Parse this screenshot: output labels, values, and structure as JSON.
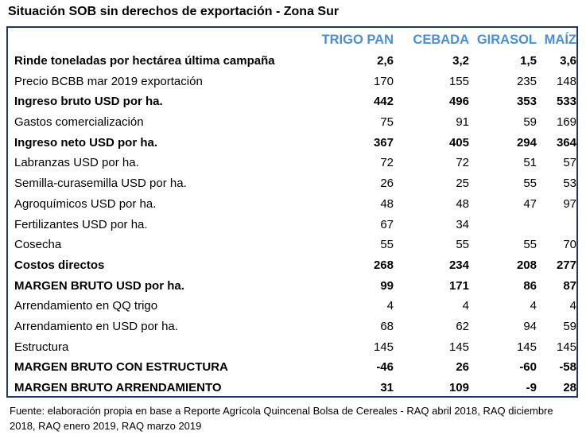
{
  "title": "Situación SOB sin derechos de exportación - Zona Sur",
  "columns": [
    "TRIGO PAN",
    "CEBADA",
    "GIRASOL",
    "MAÍZ"
  ],
  "header_color": "#4a8fd6",
  "border_color": "#1f3864",
  "rows": [
    {
      "label": "Rinde toneladas por hectárea última campaña",
      "bold": true,
      "values": [
        "2,6",
        "3,2",
        "1,5",
        "3,6"
      ]
    },
    {
      "label": "Precio BCBB mar 2019 exportación",
      "bold": false,
      "values": [
        "170",
        "155",
        "235",
        "148"
      ]
    },
    {
      "label": "Ingreso bruto USD por ha.",
      "bold": true,
      "values": [
        "442",
        "496",
        "353",
        "533"
      ]
    },
    {
      "label": "Gastos comercialización",
      "bold": false,
      "values": [
        "75",
        "91",
        "59",
        "169"
      ]
    },
    {
      "label": "Ingreso neto USD por ha.",
      "bold": true,
      "values": [
        "367",
        "405",
        "294",
        "364"
      ]
    },
    {
      "label": "Labranzas USD por ha.",
      "bold": false,
      "values": [
        "72",
        "72",
        "51",
        "57"
      ]
    },
    {
      "label": "Semilla-curasemilla USD por ha.",
      "bold": false,
      "values": [
        "26",
        "25",
        "55",
        "53"
      ]
    },
    {
      "label": "Agroquímicos USD por ha.",
      "bold": false,
      "values": [
        "48",
        "48",
        "47",
        "97"
      ]
    },
    {
      "label": "Fertilizantes USD por ha.",
      "bold": false,
      "values": [
        "67",
        "34",
        "",
        ""
      ]
    },
    {
      "label": "Cosecha",
      "bold": false,
      "values": [
        "55",
        "55",
        "55",
        "70"
      ]
    },
    {
      "label": "Costos directos",
      "bold": true,
      "values": [
        "268",
        "234",
        "208",
        "277"
      ]
    },
    {
      "label": "MARGEN BRUTO USD por ha.",
      "bold": true,
      "values": [
        "99",
        "171",
        "86",
        "87"
      ]
    },
    {
      "label": "Arrendamiento en QQ trigo",
      "bold": false,
      "values": [
        "4",
        "4",
        "4",
        "4"
      ]
    },
    {
      "label": "Arrendamiento en USD por ha.",
      "bold": false,
      "values": [
        "68",
        "62",
        "94",
        "59"
      ]
    },
    {
      "label": "Estructura",
      "bold": false,
      "values": [
        "145",
        "145",
        "145",
        "145"
      ]
    },
    {
      "label": "MARGEN BRUTO CON ESTRUCTURA",
      "bold": true,
      "values": [
        "-46",
        "26",
        "-60",
        "-58"
      ]
    },
    {
      "label": "MARGEN BRUTO ARRENDAMIENTO",
      "bold": true,
      "values": [
        "31",
        "109",
        "-9",
        "28"
      ]
    }
  ],
  "source": "Fuente: elaboración propia en base a Reporte Agrícola Quincenal Bolsa de Cereales  - RAQ abril 2018, RAQ diciembre 2018, RAQ enero 2019, RAQ marzo 2019"
}
